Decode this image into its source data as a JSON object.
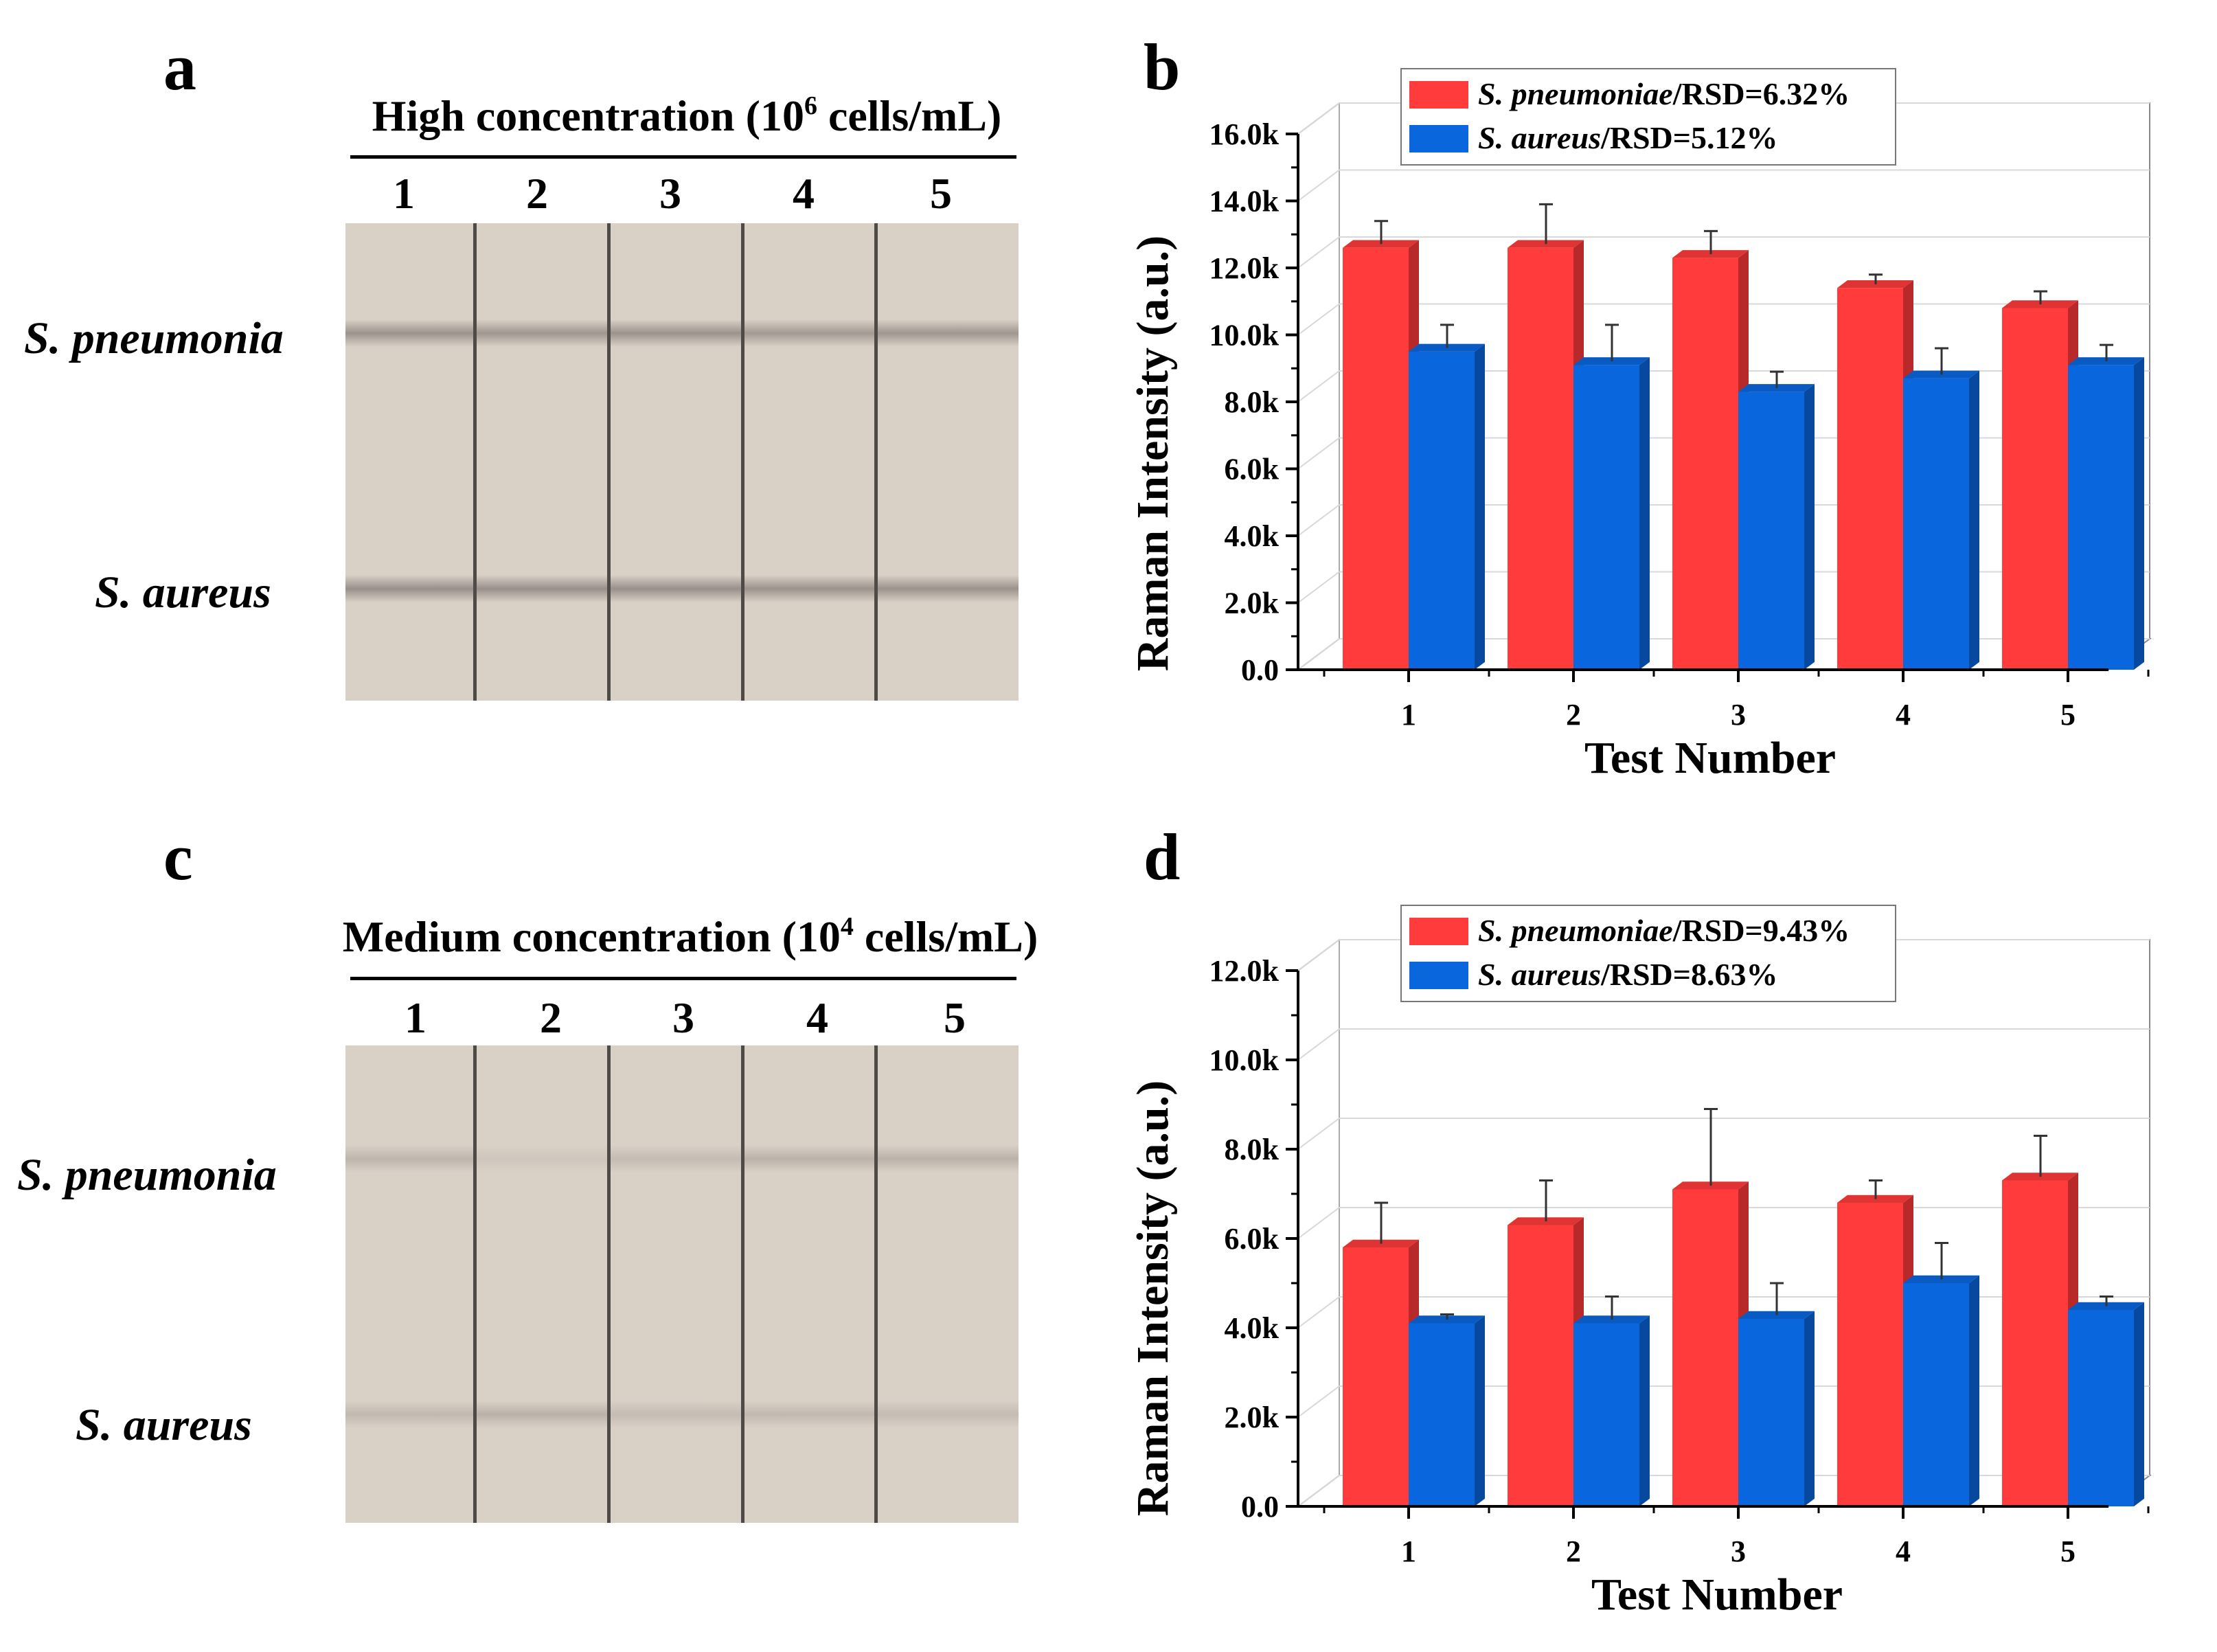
{
  "panels": {
    "a": "a",
    "b": "b",
    "c": "c",
    "d": "d"
  },
  "strips": [
    {
      "title": "High concentration (10",
      "title_sup": "6",
      "title_end": " cells/mL)",
      "lanes": [
        "1",
        "2",
        "3",
        "4",
        "5"
      ],
      "rows": [
        "S. pneumonia",
        "S. aureus"
      ],
      "strip_color": "#d9d0c6",
      "band_strength": [
        [
          0.9,
          0.85,
          0.9,
          0.8,
          0.85
        ],
        [
          0.95,
          0.95,
          0.95,
          0.9,
          0.9
        ]
      ]
    },
    {
      "title": "Medium concentration (10",
      "title_sup": "4",
      "title_end": " cells/mL)",
      "lanes": [
        "1",
        "2",
        "3",
        "4",
        "5"
      ],
      "rows": [
        "S. pneumonia",
        "S. aureus"
      ],
      "strip_color": "#d9d0c6",
      "band_strength": [
        [
          0.4,
          0.15,
          0.3,
          0.45,
          0.45
        ],
        [
          0.35,
          0.45,
          0.3,
          0.35,
          0.3
        ]
      ]
    }
  ],
  "chart_data": [
    {
      "type": "bar",
      "style": "3d",
      "categories": [
        "1",
        "2",
        "3",
        "4",
        "5"
      ],
      "xlabel": "Test Number",
      "ylabel": "Raman Intensity (a.u.)",
      "ylim": [
        0,
        16000
      ],
      "yticks": [
        {
          "value": 0,
          "label": "0.0"
        },
        {
          "value": 2000,
          "label": "2.0k"
        },
        {
          "value": 4000,
          "label": "4.0k"
        },
        {
          "value": 6000,
          "label": "6.0k"
        },
        {
          "value": 8000,
          "label": "8.0k"
        },
        {
          "value": 10000,
          "label": "10.0k"
        },
        {
          "value": 12000,
          "label": "12.0k"
        },
        {
          "value": 14000,
          "label": "14.0k"
        },
        {
          "value": 16000,
          "label": "16.0k"
        }
      ],
      "legend_position": "top-left",
      "series": [
        {
          "name": "S. pneumoniae",
          "legend_suffix": "/RSD=6.32%",
          "color": "#ff3b3b",
          "values": [
            12600,
            12600,
            12300,
            11400,
            10800
          ],
          "errors": [
            800,
            1300,
            800,
            400,
            500
          ]
        },
        {
          "name": "S. aureus",
          "legend_suffix": "/RSD=5.12%",
          "color": "#0a66dc",
          "values": [
            9500,
            9100,
            8300,
            8700,
            9100
          ],
          "errors": [
            800,
            1200,
            600,
            900,
            600
          ]
        }
      ]
    },
    {
      "type": "bar",
      "style": "3d",
      "categories": [
        "1",
        "2",
        "3",
        "4",
        "5"
      ],
      "xlabel": "Test Number",
      "ylabel": "Raman Intensity (a.u.)",
      "ylim": [
        0,
        12000
      ],
      "yticks": [
        {
          "value": 0,
          "label": "0.0"
        },
        {
          "value": 2000,
          "label": "2.0k"
        },
        {
          "value": 4000,
          "label": "4.0k"
        },
        {
          "value": 6000,
          "label": "6.0k"
        },
        {
          "value": 8000,
          "label": "8.0k"
        },
        {
          "value": 10000,
          "label": "10.0k"
        },
        {
          "value": 12000,
          "label": "12.0k"
        }
      ],
      "legend_position": "top-left",
      "series": [
        {
          "name": "S. pneumoniae",
          "legend_suffix": "/RSD=9.43%",
          "color": "#ff3b3b",
          "values": [
            5800,
            6300,
            7100,
            6800,
            7300
          ],
          "errors": [
            1000,
            1000,
            1800,
            500,
            1000
          ]
        },
        {
          "name": "S. aureus",
          "legend_suffix": "/RSD=8.63%",
          "color": "#0a66dc",
          "values": [
            4100,
            4100,
            4200,
            5000,
            4400
          ],
          "errors": [
            200,
            600,
            800,
            900,
            300
          ]
        }
      ]
    }
  ]
}
